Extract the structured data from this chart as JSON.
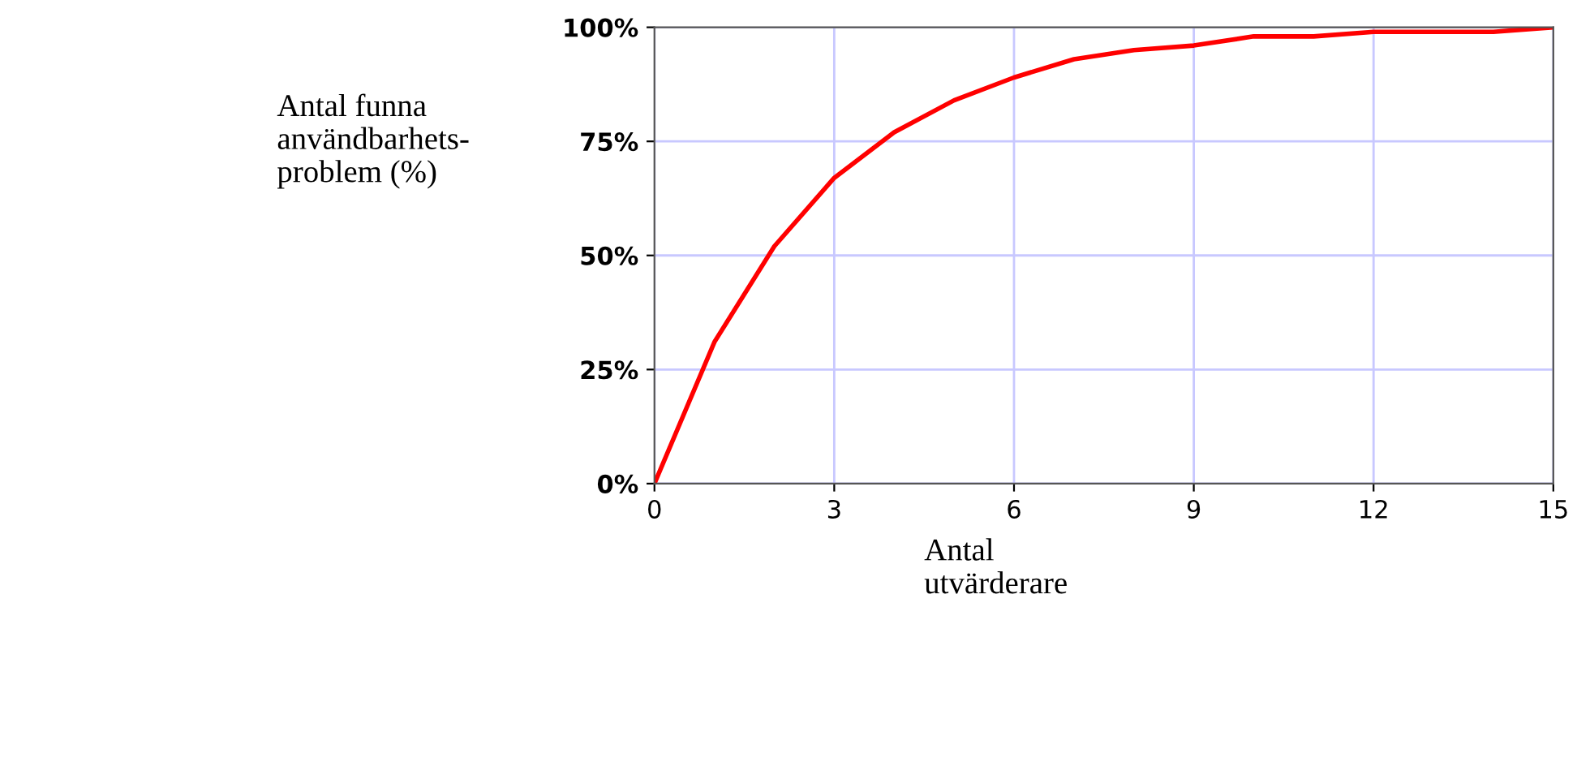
{
  "chart_data": {
    "type": "line",
    "xlabel": "Antal\nutvärderare",
    "ylabel": "Antal funna\nanvändbarhets-\nproblem (%)",
    "x": [
      0,
      1,
      2,
      3,
      4,
      5,
      6,
      7,
      8,
      9,
      10,
      11,
      12,
      13,
      14,
      15
    ],
    "series": [
      {
        "color": "#ff0000",
        "values": [
          0,
          31,
          52,
          67,
          77,
          84,
          89,
          93,
          95,
          96,
          98,
          98,
          99,
          99,
          99,
          100
        ]
      }
    ],
    "xlim": [
      0,
      15
    ],
    "xticks": [
      0,
      3,
      6,
      9,
      12,
      15
    ],
    "ylim": [
      0,
      100
    ],
    "yticks": [
      {
        "value": 0,
        "label": "0%"
      },
      {
        "value": 25,
        "label": "25%"
      },
      {
        "value": 50,
        "label": "50%"
      },
      {
        "value": 75,
        "label": "75%"
      },
      {
        "value": 100,
        "label": "100%"
      }
    ],
    "grid": true,
    "marker": "none",
    "line_style": "solid"
  }
}
